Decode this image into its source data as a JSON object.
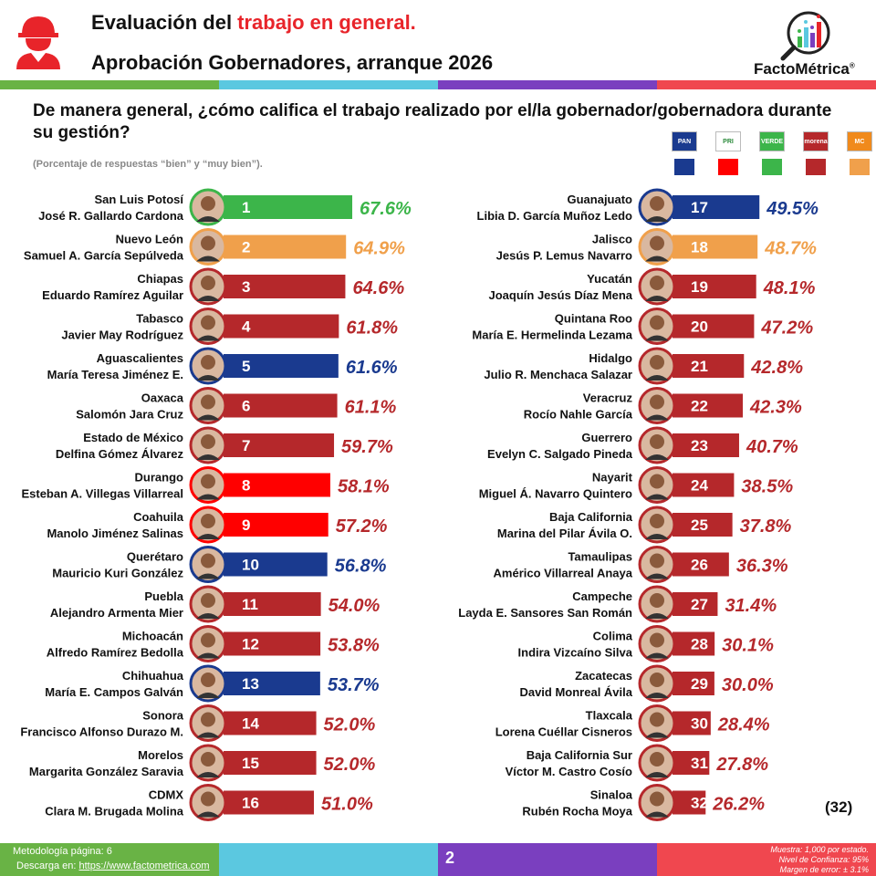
{
  "header": {
    "title_prefix": "Evaluación del ",
    "title_highlight": "trabajo en general.",
    "subtitle": "Aprobación Gobernadores, arranque 2026",
    "logo_text": "FactoMétrica",
    "logo_mark": "®"
  },
  "question": "De manera general, ¿cómo califica el trabajo realizado por el/la gobernador/gobernadora durante su gestión?",
  "note": "(Porcentaje de respuestas “bien” y “muy bien”).",
  "parties": [
    {
      "label": "PAN",
      "color": "#1a3a8f",
      "logo_color": "#1a3a8f"
    },
    {
      "label": "PRI",
      "color": "#ff0000",
      "logo_color": "#ffffff"
    },
    {
      "label": "VERDE",
      "color": "#3cb54a",
      "logo_color": "#3cb54a"
    },
    {
      "label": "morena",
      "color": "#b5282b",
      "logo_color": "#b5282b"
    },
    {
      "label": "MC",
      "color": "#f0a04b",
      "logo_color": "#f08a1c"
    }
  ],
  "colors": {
    "green": "#3cb54a",
    "orange": "#f0a04b",
    "morena": "#b5282b",
    "pan": "#1a3a8f",
    "pri": "#ff0000"
  },
  "chart_data": {
    "type": "bar",
    "title": "Aprobación Gobernadores, arranque 2026",
    "unit": "%",
    "series": [
      {
        "rank": 1,
        "state": "San Luis Potosí",
        "governor": "José R. Gallardo Cardona",
        "value": 67.6,
        "color": "#3cb54a",
        "label_color": "#3cb54a"
      },
      {
        "rank": 2,
        "state": "Nuevo León",
        "governor": "Samuel A. García Sepúlveda",
        "value": 64.9,
        "color": "#f0a04b",
        "label_color": "#f0a04b"
      },
      {
        "rank": 3,
        "state": "Chiapas",
        "governor": "Eduardo Ramírez Aguilar",
        "value": 64.6,
        "color": "#b5282b",
        "label_color": "#b5282b"
      },
      {
        "rank": 4,
        "state": "Tabasco",
        "governor": "Javier May Rodríguez",
        "value": 61.8,
        "color": "#b5282b",
        "label_color": "#b5282b"
      },
      {
        "rank": 5,
        "state": "Aguascalientes",
        "governor": "María Teresa Jiménez E.",
        "value": 61.6,
        "color": "#1a3a8f",
        "label_color": "#1a3a8f"
      },
      {
        "rank": 6,
        "state": "Oaxaca",
        "governor": "Salomón Jara Cruz",
        "value": 61.1,
        "color": "#b5282b",
        "label_color": "#b5282b"
      },
      {
        "rank": 7,
        "state": "Estado de México",
        "governor": "Delfina Gómez Álvarez",
        "value": 59.7,
        "color": "#b5282b",
        "label_color": "#b5282b"
      },
      {
        "rank": 8,
        "state": "Durango",
        "governor": "Esteban A. Villegas Villarreal",
        "value": 58.1,
        "color": "#ff0000",
        "label_color": "#b5282b"
      },
      {
        "rank": 9,
        "state": "Coahuila",
        "governor": "Manolo Jiménez Salinas",
        "value": 57.2,
        "color": "#ff0000",
        "label_color": "#b5282b"
      },
      {
        "rank": 10,
        "state": "Querétaro",
        "governor": "Mauricio Kuri González",
        "value": 56.8,
        "color": "#1a3a8f",
        "label_color": "#1a3a8f"
      },
      {
        "rank": 11,
        "state": "Puebla",
        "governor": "Alejandro Armenta Mier",
        "value": 54.0,
        "color": "#b5282b",
        "label_color": "#b5282b"
      },
      {
        "rank": 12,
        "state": "Michoacán",
        "governor": "Alfredo Ramírez Bedolla",
        "value": 53.8,
        "color": "#b5282b",
        "label_color": "#b5282b"
      },
      {
        "rank": 13,
        "state": "Chihuahua",
        "governor": "María E. Campos Galván",
        "value": 53.7,
        "color": "#1a3a8f",
        "label_color": "#1a3a8f"
      },
      {
        "rank": 14,
        "state": "Sonora",
        "governor": "Francisco Alfonso Durazo M.",
        "value": 52.0,
        "color": "#b5282b",
        "label_color": "#b5282b"
      },
      {
        "rank": 15,
        "state": "Morelos",
        "governor": "Margarita González Saravia",
        "value": 52.0,
        "color": "#b5282b",
        "label_color": "#b5282b"
      },
      {
        "rank": 16,
        "state": "CDMX",
        "governor": "Clara M. Brugada Molina",
        "value": 51.0,
        "color": "#b5282b",
        "label_color": "#b5282b"
      },
      {
        "rank": 17,
        "state": "Guanajuato",
        "governor": "Libia D. García Muñoz Ledo",
        "value": 49.5,
        "color": "#1a3a8f",
        "label_color": "#1a3a8f"
      },
      {
        "rank": 18,
        "state": "Jalisco",
        "governor": "Jesús P. Lemus Navarro",
        "value": 48.7,
        "color": "#f0a04b",
        "label_color": "#f0a04b"
      },
      {
        "rank": 19,
        "state": "Yucatán",
        "governor": "Joaquín Jesús Díaz Mena",
        "value": 48.1,
        "color": "#b5282b",
        "label_color": "#b5282b"
      },
      {
        "rank": 20,
        "state": "Quintana Roo",
        "governor": "María E. Hermelinda Lezama",
        "value": 47.2,
        "color": "#b5282b",
        "label_color": "#b5282b"
      },
      {
        "rank": 21,
        "state": "Hidalgo",
        "governor": "Julio R. Menchaca Salazar",
        "value": 42.8,
        "color": "#b5282b",
        "label_color": "#b5282b"
      },
      {
        "rank": 22,
        "state": "Veracruz",
        "governor": "Rocío Nahle García",
        "value": 42.3,
        "color": "#b5282b",
        "label_color": "#b5282b"
      },
      {
        "rank": 23,
        "state": "Guerrero",
        "governor": "Evelyn C. Salgado Pineda",
        "value": 40.7,
        "color": "#b5282b",
        "label_color": "#b5282b"
      },
      {
        "rank": 24,
        "state": "Nayarit",
        "governor": "Miguel Á. Navarro Quintero",
        "value": 38.5,
        "color": "#b5282b",
        "label_color": "#b5282b"
      },
      {
        "rank": 25,
        "state": "Baja California",
        "governor": "Marina del Pilar Ávila O.",
        "value": 37.8,
        "color": "#b5282b",
        "label_color": "#b5282b"
      },
      {
        "rank": 26,
        "state": "Tamaulipas",
        "governor": "Américo Villarreal Anaya",
        "value": 36.3,
        "color": "#b5282b",
        "label_color": "#b5282b"
      },
      {
        "rank": 27,
        "state": "Campeche",
        "governor": "Layda E. Sansores San Román",
        "value": 31.4,
        "color": "#b5282b",
        "label_color": "#b5282b"
      },
      {
        "rank": 28,
        "state": "Colima",
        "governor": "Indira Vizcaíno Silva",
        "value": 30.1,
        "color": "#b5282b",
        "label_color": "#b5282b"
      },
      {
        "rank": 29,
        "state": "Zacatecas",
        "governor": "David Monreal Ávila",
        "value": 30.0,
        "color": "#b5282b",
        "label_color": "#b5282b"
      },
      {
        "rank": 30,
        "state": "Tlaxcala",
        "governor": "Lorena Cuéllar Cisneros",
        "value": 28.4,
        "color": "#b5282b",
        "label_color": "#b5282b"
      },
      {
        "rank": 31,
        "state": "Baja California Sur",
        "governor": "Víctor M. Castro Cosío",
        "value": 27.8,
        "color": "#b5282b",
        "label_color": "#b5282b"
      },
      {
        "rank": 32,
        "state": "Sinaloa",
        "governor": "Rubén Rocha Moya",
        "value": 26.2,
        "color": "#b5282b",
        "label_color": "#b5282b"
      }
    ],
    "count_label": "(32)"
  },
  "footer": {
    "methodology": "Metodología página: 6",
    "download_prefix": "Descarga en: ",
    "download_link": "https://www.factometrica.com",
    "page": "2",
    "sample": "Muestra:  1,000 por estado.",
    "confidence": "Nivel de Confianza: 95%",
    "margin": "Margen de error: ± 3.1%",
    "bar_colors": [
      "#69b345",
      "#5bc8e0",
      "#7a3fbf",
      "#f0474f"
    ]
  }
}
